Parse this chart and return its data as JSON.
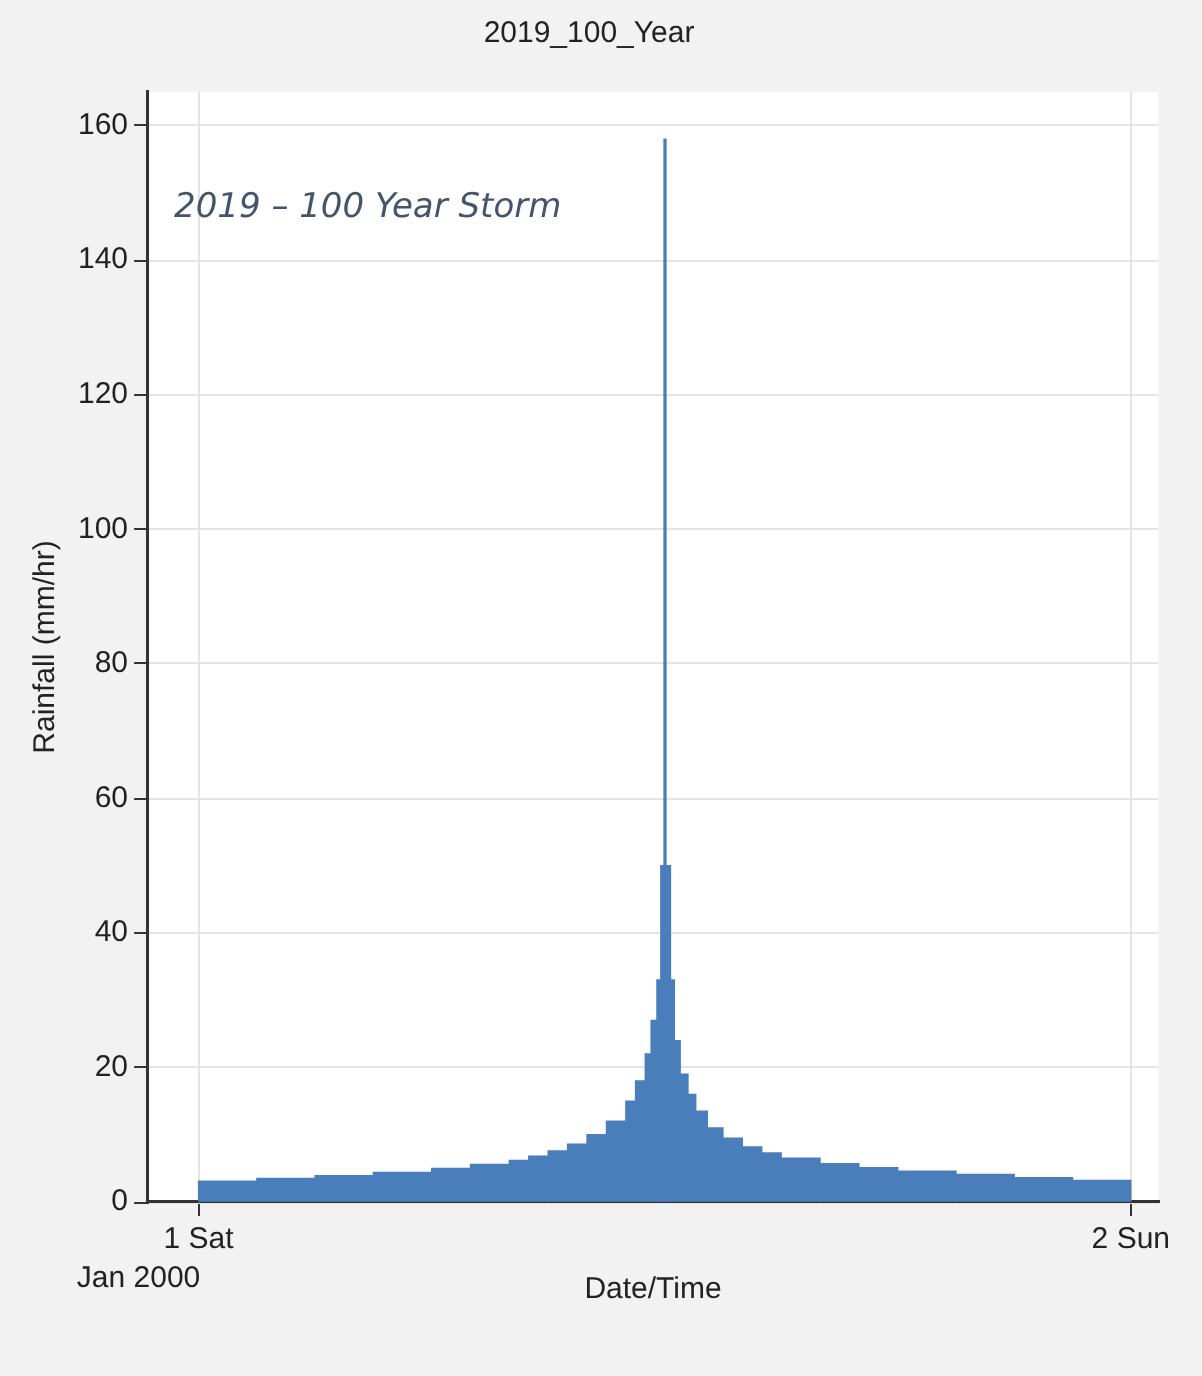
{
  "chart_data": {
    "type": "histogram",
    "title": "2019_100_Year",
    "xlabel": "Date/Time",
    "ylabel": "Rainfall (mm/hr)",
    "bins": [
      "2000-01-01T00:00",
      "2000-01-01T01:30",
      "2000-01-01T03:00",
      "2000-01-01T04:30",
      "2000-01-01T06:00",
      "2000-01-01T07:00",
      "2000-01-01T08:00",
      "2000-01-01T08:30",
      "2000-01-01T09:00",
      "2000-01-01T09:30",
      "2000-01-01T10:00",
      "2000-01-01T10:30",
      "2000-01-01T11:00",
      "2000-01-01T11:15",
      "2000-01-01T11:30",
      "2000-01-01T11:39",
      "2000-01-01T11:48",
      "2000-01-01T11:54",
      "2000-01-01T11:59",
      "2000-01-01T12:02",
      "2000-01-01T12:09",
      "2000-01-01T12:15",
      "2000-01-01T12:24",
      "2000-01-01T12:36",
      "2000-01-01T12:48",
      "2000-01-01T13:06",
      "2000-01-01T13:30",
      "2000-01-01T14:00",
      "2000-01-01T14:30",
      "2000-01-01T15:00",
      "2000-01-01T16:00",
      "2000-01-01T17:00",
      "2000-01-01T18:00",
      "2000-01-01T19:30",
      "2000-01-01T21:00",
      "2000-01-01T22:30",
      "2000-01-02T00:00"
    ],
    "values": [
      3.1,
      3.5,
      3.9,
      4.4,
      5.0,
      5.6,
      6.2,
      6.8,
      7.6,
      8.6,
      10,
      12,
      15,
      18,
      22,
      27,
      33,
      50,
      158,
      50,
      33,
      24,
      19,
      16,
      13.5,
      11,
      9.5,
      8.2,
      7.3,
      6.5,
      5.7,
      5.1,
      4.6,
      4.1,
      3.6,
      3.2
    ],
    "color": "#4a7ebb",
    "xlim": [
      "1999-12-31T22:42",
      "2000-01-02T00:42"
    ],
    "xticks": [
      {
        "value": "2000-01-01",
        "label": "1 Sat"
      },
      {
        "value": "2000-01-02",
        "label": "2 Sun"
      }
    ],
    "ylim": [
      0,
      165
    ],
    "yticks": [
      0,
      20,
      40,
      60,
      80,
      100,
      120,
      140,
      160
    ],
    "grid": true,
    "annotations": [
      "2019 – 100 Year Storm",
      "Jan 2000"
    ]
  }
}
